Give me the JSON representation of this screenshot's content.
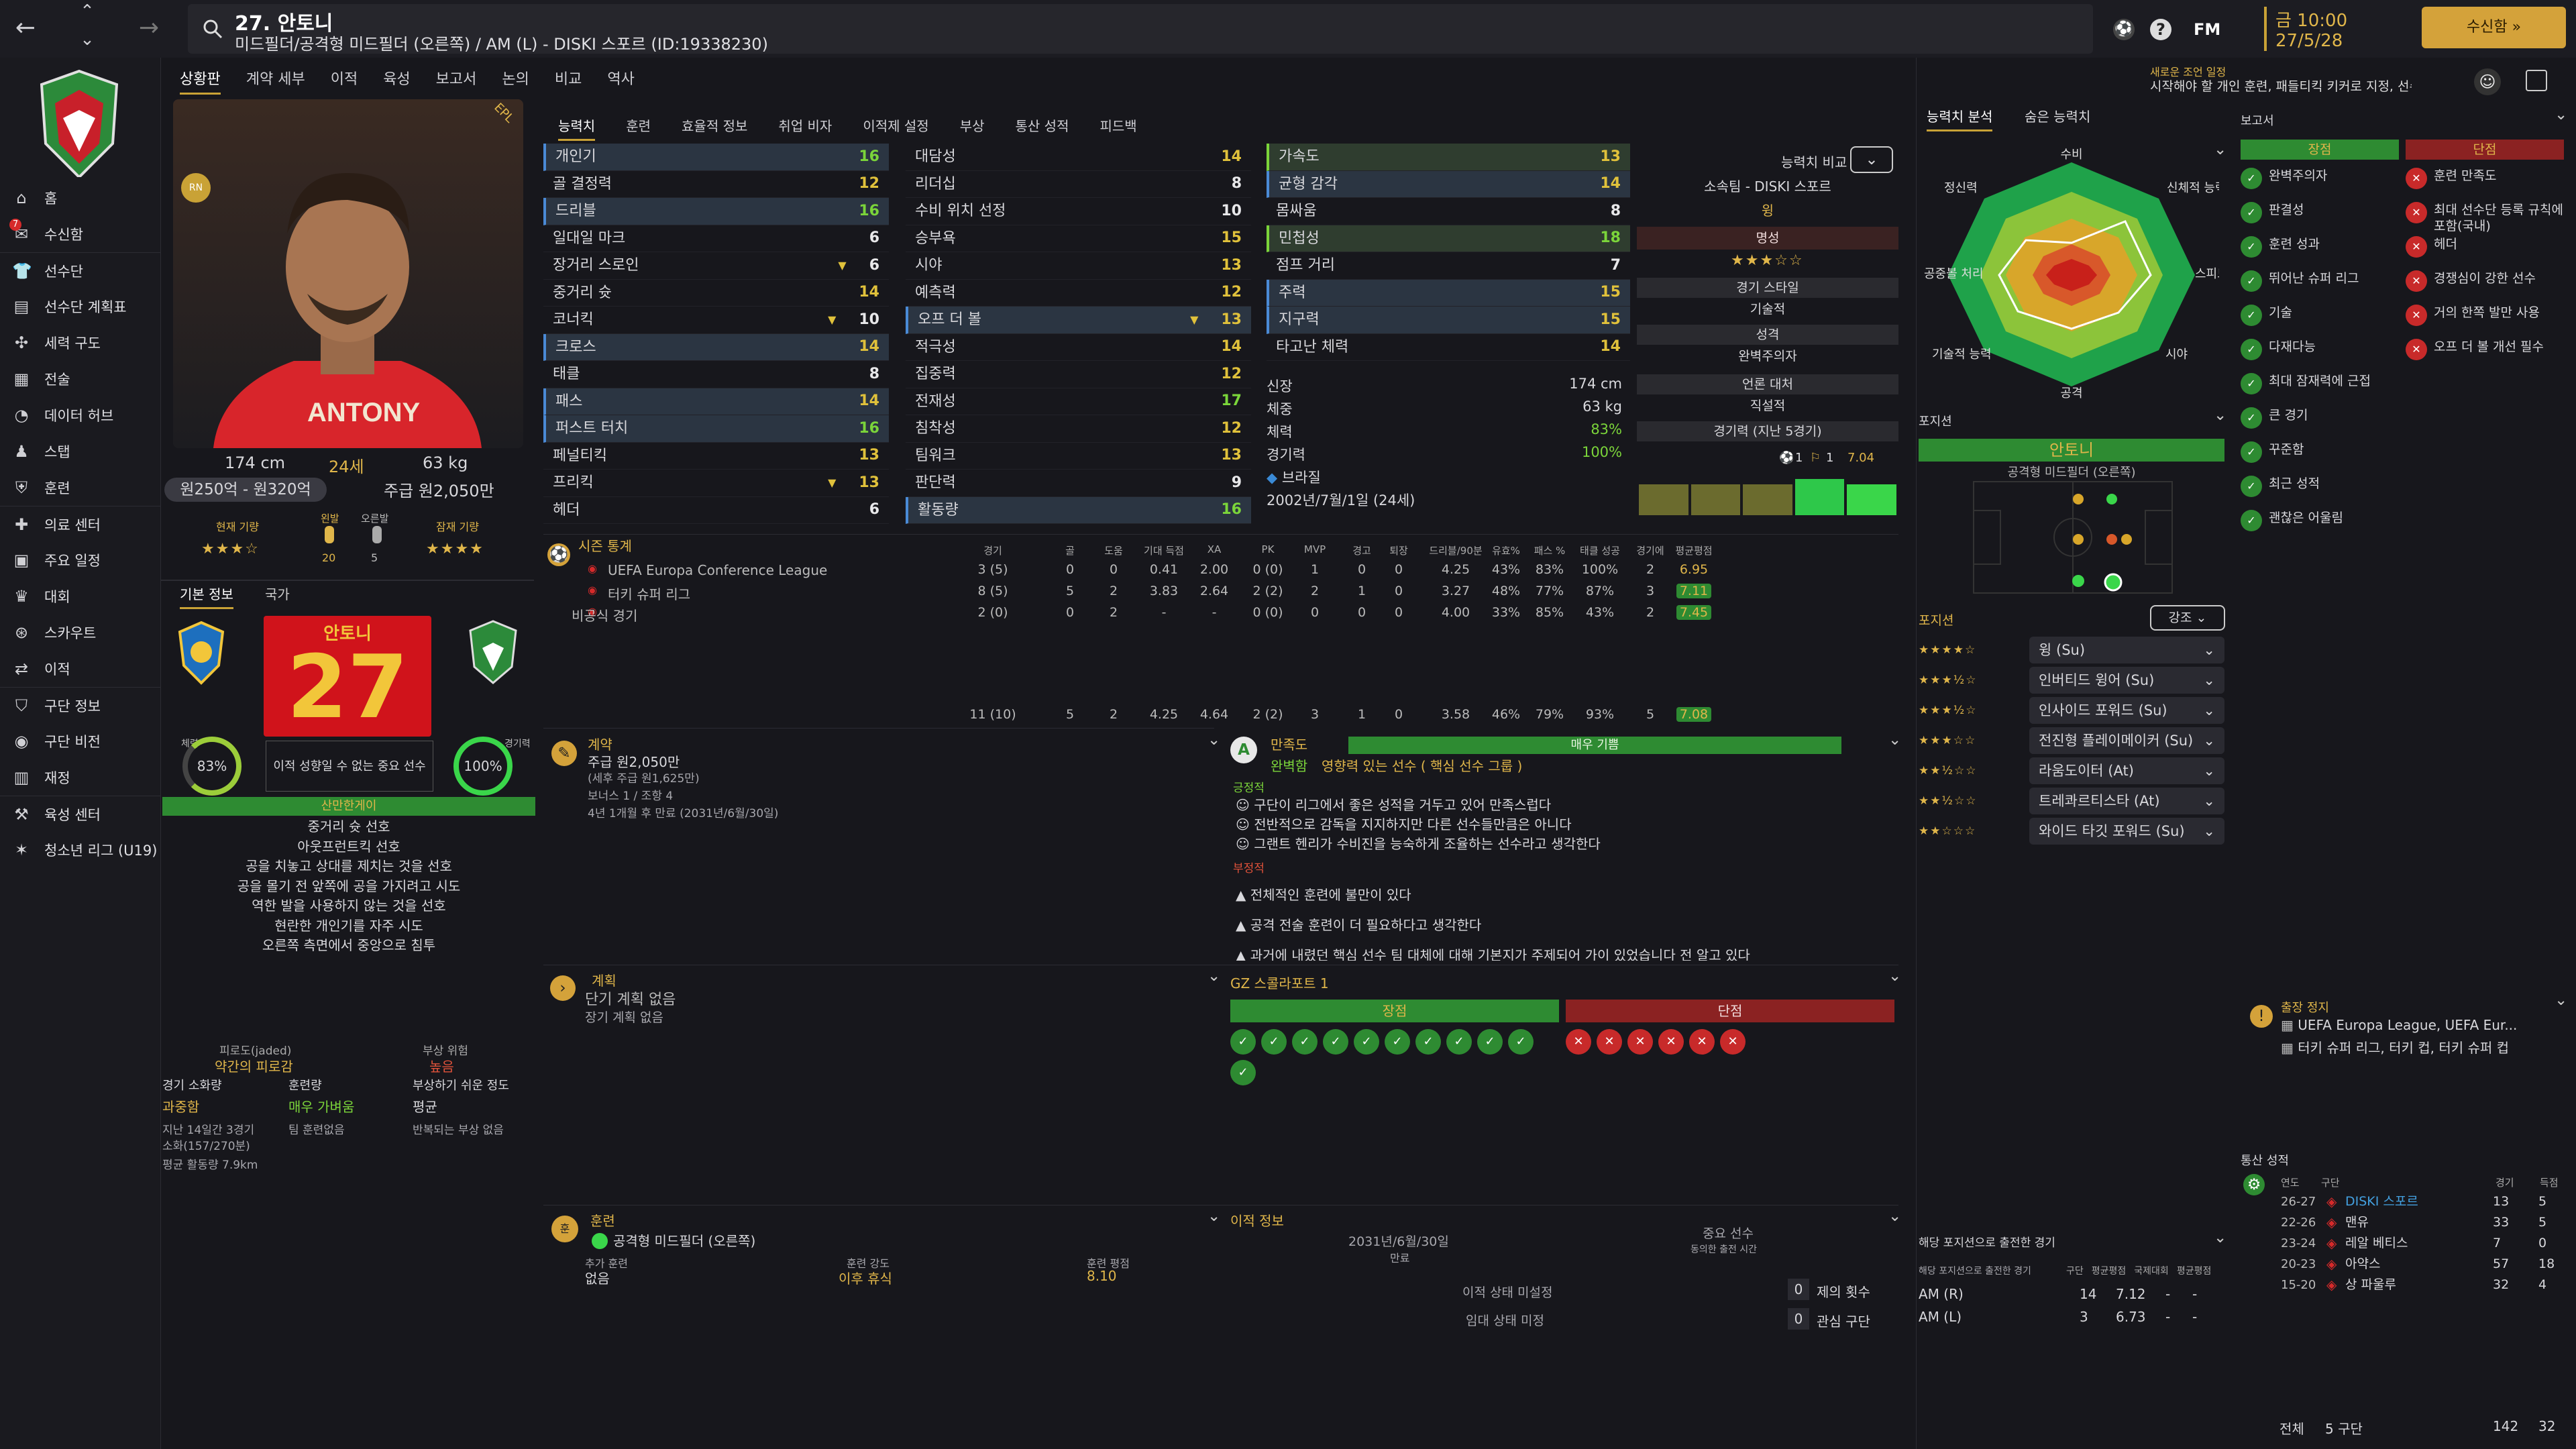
{
  "nav": {
    "back": "←",
    "forward": "→",
    "up": "⌃",
    "down": "⌄"
  },
  "header": {
    "title": "27. 안토니",
    "subtitle": "미드필더/공격형 미드필더 (오른쪽) / AM (L) - DISKI 스포르 (ID:19338230)",
    "fm": "FM",
    "date_time": "금 10:00",
    "date": "27/5/28",
    "continue": "수신함 »",
    "notice_title": "새로운 조언 일정",
    "notice_text": "시작해야 할 개인 훈련, 패들티킥 키커로 지정, 선수 특성 변경"
  },
  "sidebar": {
    "items": [
      {
        "icon": "home",
        "label": "홈"
      },
      {
        "icon": "inbox",
        "label": "수신함",
        "badge": "7"
      },
      {
        "icon": "shirt",
        "label": "선수단"
      },
      {
        "icon": "clipboard",
        "label": "선수단 계획표"
      },
      {
        "icon": "tactics",
        "label": "세력 구도"
      },
      {
        "icon": "data",
        "label": "전술"
      },
      {
        "icon": "hub",
        "label": "데이터 허브"
      },
      {
        "icon": "staff",
        "label": "스탭"
      },
      {
        "icon": "training",
        "label": "훈련"
      },
      {
        "icon": "medical",
        "label": "의료 센터"
      },
      {
        "icon": "calendar",
        "label": "주요 일정"
      },
      {
        "icon": "trophy",
        "label": "대회"
      },
      {
        "icon": "scout",
        "label": "스카우트"
      },
      {
        "icon": "transfer",
        "label": "이적"
      },
      {
        "icon": "club",
        "label": "구단 정보"
      },
      {
        "icon": "vision",
        "label": "구단 비전"
      },
      {
        "icon": "finance",
        "label": "재정"
      },
      {
        "icon": "academy",
        "label": "육성 센터"
      },
      {
        "icon": "youth",
        "label": "청소년 리그 (U19)"
      }
    ]
  },
  "menu_tabs": [
    "상황판",
    "계약 세부",
    "이적",
    "육성",
    "보고서",
    "논의",
    "비교",
    "역사"
  ],
  "profile": {
    "height": "174 cm",
    "age": "24세",
    "weight": "63 kg",
    "value": "원250억 - 원320억",
    "wage": "주급 원2,050만",
    "current_ability_label": "현재 기량",
    "potential_label": "잠재 기량",
    "current_stars": "★★★☆",
    "potential_stars": "★★★★",
    "left_foot": "왼발",
    "right_foot": "오른발",
    "left_foot_val": "20",
    "right_foot_val": "5",
    "corner_badge": "EPL"
  },
  "tabs_info": [
    "기본 정보",
    "국가"
  ],
  "card": {
    "name": "안토니",
    "number": "27",
    "fitness_label": "체력",
    "fitness": "83%",
    "match_label": "경기력",
    "match": "100%",
    "role_note": "이적 성향일 수 없는 중요 선수",
    "personality": "산만한게이",
    "likes": [
      "중거리 슛 선호",
      "아웃프런트킥 선호",
      "공을 치놓고 상대를 제치는 것을 선호",
      "공을 몰기 전 앞쪽에 공을 가지려고 시도",
      "역한 발을 사용하지 않는 것을 선호",
      "현란한 개인기를 자주 시도",
      "오른쪽 측면에서 중앙으로 침투"
    ]
  },
  "condition": {
    "fatigue_label": "피로도(jaded)",
    "fatigue_val": "약간의 피로감",
    "risk_label": "부상 위험",
    "risk_val": "높음",
    "match_load_label": "경기 소화량",
    "match_load_val": "과중함",
    "training_label": "훈련량",
    "training_val": "매우 가벼움",
    "injury_label": "부상하기 쉬운 정도",
    "injury_val": "평균",
    "history1": "지난 14일간 3경기",
    "history2": "소화(157/270분)",
    "history3": "팀 훈련없음",
    "history4": "반복되는 부상 없음",
    "dist": "평균 활동량 7.9km"
  },
  "attr_tabs": [
    "능력치",
    "훈련",
    "효율적 정보",
    "취업 비자",
    "이적제 설정",
    "부상",
    "통산 성적",
    "피드백"
  ],
  "attrs_col1": [
    {
      "n": "개인기",
      "v": "16",
      "c": "green",
      "hl": true
    },
    {
      "n": "골 결정력",
      "v": "12",
      "c": "yellow"
    },
    {
      "n": "드리블",
      "v": "16",
      "c": "green",
      "hl": true
    },
    {
      "n": "일대일 마크",
      "v": "6",
      "c": "white"
    },
    {
      "n": "장거리 스로인",
      "v": "6",
      "c": "white",
      "arrow": true
    },
    {
      "n": "중거리 슛",
      "v": "14",
      "c": "yellow"
    },
    {
      "n": "코너킥",
      "v": "10",
      "c": "white",
      "arrow": true
    },
    {
      "n": "크로스",
      "v": "14",
      "c": "yellow",
      "hl": true
    },
    {
      "n": "태클",
      "v": "8",
      "c": "white"
    },
    {
      "n": "패스",
      "v": "14",
      "c": "yellow",
      "hl": true
    },
    {
      "n": "퍼스트 터치",
      "v": "16",
      "c": "green",
      "hl": true
    },
    {
      "n": "페널티킥",
      "v": "13",
      "c": "yellow"
    },
    {
      "n": "프리킥",
      "v": "13",
      "c": "yellow",
      "arrow": true
    },
    {
      "n": "헤더",
      "v": "6",
      "c": "white"
    }
  ],
  "attrs_col2": [
    {
      "n": "대담성",
      "v": "14",
      "c": "yellow"
    },
    {
      "n": "리더십",
      "v": "8",
      "c": "white"
    },
    {
      "n": "수비 위치 선정",
      "v": "10",
      "c": "white"
    },
    {
      "n": "승부욕",
      "v": "15",
      "c": "yellow"
    },
    {
      "n": "시야",
      "v": "13",
      "c": "yellow"
    },
    {
      "n": "예측력",
      "v": "12",
      "c": "yellow"
    },
    {
      "n": "오프 더 볼",
      "v": "13",
      "c": "yellow",
      "hl": true,
      "arrow": true
    },
    {
      "n": "적극성",
      "v": "14",
      "c": "yellow"
    },
    {
      "n": "집중력",
      "v": "12",
      "c": "yellow"
    },
    {
      "n": "전재성",
      "v": "17",
      "c": "green"
    },
    {
      "n": "침착성",
      "v": "12",
      "c": "yellow"
    },
    {
      "n": "팀워크",
      "v": "13",
      "c": "yellow"
    },
    {
      "n": "판단력",
      "v": "9",
      "c": "white"
    },
    {
      "n": "활동량",
      "v": "16",
      "c": "green",
      "hl": true
    }
  ],
  "attrs_col3": [
    {
      "n": "가속도",
      "v": "13",
      "c": "yellow",
      "hl2": true
    },
    {
      "n": "균형 감각",
      "v": "14",
      "c": "yellow",
      "hl": true
    },
    {
      "n": "몸싸움",
      "v": "8",
      "c": "white"
    },
    {
      "n": "민첩성",
      "v": "18",
      "c": "green",
      "hl2": true
    },
    {
      "n": "점프 거리",
      "v": "7",
      "c": "white"
    },
    {
      "n": "주력",
      "v": "15",
      "c": "yellow",
      "hl": true
    },
    {
      "n": "지구력",
      "v": "15",
      "c": "yellow",
      "hl": true
    },
    {
      "n": "타고난 체력",
      "v": "14",
      "c": "yellow"
    }
  ],
  "physical": {
    "h_label": "신장",
    "h": "174 cm",
    "w_label": "체중",
    "w": "63 kg",
    "f_label": "체력",
    "f": "83%",
    "m_label": "경기력",
    "m": "100%",
    "nat": "브라질",
    "dob": "2002년/7월/1일 (24세)"
  },
  "compare": {
    "label": "능력치 비교",
    "club": "소속팀 - DISKI 스포르",
    "role": "윙",
    "rep_label": "명성",
    "rep_stars": "★★★☆☆",
    "style_label": "경기 스타일",
    "style_val": "기술적",
    "pers_label": "성격",
    "pers_val": "완벽주의자",
    "media_label": "언론 대처",
    "media_val": "직설적",
    "form_label": "경기력 (지난 5경기)",
    "form_goals": "1",
    "form_assists": "1",
    "form_rating": "7.04"
  },
  "season": {
    "title": "시즌 통계",
    "cols": [
      "경기",
      "골",
      "도움",
      "기대 득점",
      "XA",
      "PK",
      "MVP",
      "경고",
      "퇴장",
      "드리블/90분",
      "유효%",
      "패스 %",
      "태클 성공",
      "경기에 ",
      "평균평점"
    ],
    "rows": [
      {
        "comp": "UEFA Europa Conference League",
        "v": [
          "3 (5)",
          "0",
          "0",
          "0.41",
          "2.00",
          "0 (0)",
          "1",
          "0",
          "0",
          "4.25",
          "43%",
          "83%",
          "100%",
          "2",
          "6.95"
        ]
      },
      {
        "comp": "터키 슈퍼 리그",
        "v": [
          "8 (5)",
          "5",
          "2",
          "3.83",
          "2.64",
          "2 (2)",
          "2",
          "1",
          "0",
          "3.27",
          "48%",
          "77%",
          "87%",
          "3",
          "7.11"
        ]
      },
      {
        "comp": "비공식 경기",
        "v": [
          "2 (0)",
          "0",
          "2",
          "-",
          "-",
          "0 (0)",
          "0",
          "0",
          "0",
          "4.00",
          "33%",
          "85%",
          "43%",
          "2",
          "7.45"
        ]
      }
    ],
    "total": [
      "11 (10)",
      "5",
      "2",
      "4.25",
      "4.64",
      "2 (2)",
      "3",
      "1",
      "0",
      "3.58",
      "46%",
      "79%",
      "93%",
      "5",
      "7.08"
    ]
  },
  "contract": {
    "title": "계약",
    "wage": "주급 원2,050만",
    "wage_note": "(세후 주급 원1,625만)",
    "bonus": "보너스 1 / 조항 4",
    "expiry": "4년 1개월 후 만료 (2031년/6월/30일)"
  },
  "happiness": {
    "title": "만족도",
    "level": "매우 기쁨",
    "status": "완벽함",
    "status_desc": "영향력 있는 선수 ( 핵심 선수 그룹 )",
    "pos_label": "긍정적",
    "pos": [
      "구단이 리그에서 좋은 성적을 거두고 있어 만족스럽다",
      "전반적으로 감독을 지지하지만 다른 선수들만큼은 아니다",
      "그랜트 헨리가 수비진을 능숙하게 조율하는 선수라고 생각한다"
    ],
    "neg_label": "부정적",
    "neg": [
      "전체적인 훈련에 불만이 있다",
      "공격 전술 훈련이 더 필요하다고 생각한다",
      "과거에 내렸던 핵심 선수 팀 대체에 대해 기본지가 주제되어 가이 있었습니다 전 알고 있다"
    ]
  },
  "plans": {
    "title": "계획",
    "short": "단기 계획 없음",
    "long": "장기 계획 없음"
  },
  "report": {
    "title": "GZ 스콜라포트 1",
    "strength_label": "장점",
    "weakness_label": "단점"
  },
  "training": {
    "title": "훈련",
    "role": "공격형 미드필더 (오른쪽)",
    "add_label": "추가 훈련",
    "add_val": "없음",
    "intensity_label": "훈련 강도",
    "intensity_val": "이후 휴식",
    "rating_label": "훈련 평점",
    "rating_val": "8.10"
  },
  "transfer": {
    "title": "이적 정보",
    "date": "2031년/6월/30일",
    "date_label": "만료",
    "status": "중요 선수",
    "status_note": "동의한 출전 시간",
    "interest_label": "이적 상태 미설정",
    "offers_label": "임대 상태 미정",
    "offers": "제의 횟수",
    "clubs": "관심 구단",
    "offers_n": "0",
    "clubs_n": "0"
  },
  "right_tabs": [
    "능력치 분석",
    "숨은 능력치"
  ],
  "radar": {
    "labels": [
      "수비",
      "신체적 능력",
      "스피드",
      "시야",
      "공격",
      "기술적 능력",
      "공중볼 처리",
      "정신력"
    ]
  },
  "position": {
    "title": "포지션",
    "name": "안토니",
    "role": "공격형 미드필더 (오른쪽)",
    "pos_label": "포지션",
    "filter": "강조",
    "roles": [
      {
        "stars": "★★★★☆",
        "label": "윙 (Su)"
      },
      {
        "stars": "★★★½☆",
        "label": "인버티드 윙어 (Su)"
      },
      {
        "stars": "★★★½☆",
        "label": "인사이드 포워드 (Su)"
      },
      {
        "stars": "★★★☆☆",
        "label": "전진형 플레이메이커 (Su)"
      },
      {
        "stars": "★★½☆☆",
        "label": "라움도이터 (At)"
      },
      {
        "stars": "★★½☆☆",
        "label": "트레콰르티스타 (At)"
      },
      {
        "stars": "★★☆☆☆",
        "label": "와이드 타깃 포워드 (Su)"
      }
    ]
  },
  "pos_games": {
    "title": "해당 포지션으로 출전한 경기",
    "sub": "해당 포지션으로 출전한 경기",
    "cols": [
      "구단",
      "평균평점",
      "국제대회",
      "평균평점"
    ],
    "rows": [
      {
        "pos": "AM (R)",
        "g": "14",
        "r": "7.12",
        "a": "-",
        "b": "-"
      },
      {
        "pos": "AM (L)",
        "g": "3",
        "r": "6.73",
        "a": "-",
        "b": "-"
      }
    ]
  },
  "report_right": {
    "title": "보고서",
    "strength": "장점",
    "weakness": "단점",
    "strengths": [
      "완벽주의자",
      "판결성",
      "훈련 성과",
      "뛰어난 슈퍼 리그",
      "기술",
      "다재다능",
      "최대 잠재력에 근접",
      "큰 경기",
      "꾸준함",
      "최근 성적",
      "괜찮은 어울림"
    ],
    "weaknesses": [
      "훈련 만족도",
      "최대 선수단 등록 규칙에 포함(국내)",
      "헤더",
      "경쟁심이 강한 선수",
      "거의 한쪽 발만 사용",
      "오프 더 볼 개선 필수"
    ]
  },
  "suspension": {
    "title": "출장 정지",
    "l1": "UEFA Europa League, UEFA Eur...",
    "l2": "터키 슈퍼 리그, 터키 컵, 터키 슈퍼 컵"
  },
  "career": {
    "title": "통산 성적",
    "cols": [
      "연도",
      "구단",
      "경기",
      "득점"
    ],
    "rows": [
      {
        "y": "26-27",
        "club": "DISKI 스포르",
        "g": "13",
        "s": "5"
      },
      {
        "y": "22-26",
        "club": "맨유",
        "g": "33",
        "s": "5"
      },
      {
        "y": "23-24",
        "club": "레알 베티스",
        "g": "7",
        "s": "0"
      },
      {
        "y": "20-23",
        "club": "아약스",
        "g": "57",
        "s": "18"
      },
      {
        "y": "15-20",
        "club": "상 파울루",
        "g": "32",
        "s": "4"
      }
    ],
    "total_label": "전체",
    "total_clubs": "5 구단",
    "total_g": "142",
    "total_s": "32"
  },
  "colors": {
    "accent": "#c9a236",
    "green": "#2e8b32",
    "red": "#8b2222",
    "panel": "#1d1d23"
  }
}
